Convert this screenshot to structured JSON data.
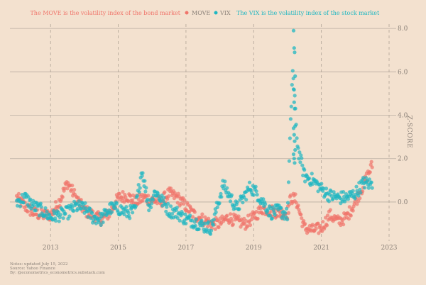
{
  "chart_data": {
    "type": "scatter",
    "ylabel": "Z-SCORE",
    "x_ticks": [
      "2013",
      "2015",
      "2017",
      "2019",
      "2021",
      "2023"
    ],
    "y_ticks": [
      "0.0",
      "2.0",
      "4.0",
      "6.0",
      "8.0"
    ],
    "xlim": [
      2011.8,
      2023.0
    ],
    "ylim": [
      -1.8,
      8.2
    ],
    "grid": {
      "horizontal_solid": true,
      "vertical_dashed": true
    },
    "legend": {
      "placement": "top-center",
      "left_text": "The MOVE is the volatility index of the bond market",
      "right_text": "The VIX is the volatility index of the stock market"
    },
    "series": [
      {
        "name": "MOVE",
        "color": "#f0756b",
        "points": [
          [
            2012.0,
            0.2
          ],
          [
            2012.25,
            -0.2
          ],
          [
            2012.5,
            -0.5
          ],
          [
            2012.75,
            -0.6
          ],
          [
            2013.0,
            -0.6
          ],
          [
            2013.25,
            0.0
          ],
          [
            2013.5,
            0.9
          ],
          [
            2013.75,
            0.2
          ],
          [
            2014.0,
            -0.4
          ],
          [
            2014.25,
            -0.6
          ],
          [
            2014.5,
            -0.8
          ],
          [
            2014.75,
            -0.5
          ],
          [
            2015.0,
            0.2
          ],
          [
            2015.25,
            0.3
          ],
          [
            2015.5,
            0.0
          ],
          [
            2015.75,
            0.2
          ],
          [
            2016.0,
            0.1
          ],
          [
            2016.25,
            0.0
          ],
          [
            2016.5,
            0.4
          ],
          [
            2016.75,
            0.2
          ],
          [
            2017.0,
            -0.2
          ],
          [
            2017.25,
            -0.6
          ],
          [
            2017.5,
            -0.8
          ],
          [
            2017.75,
            -1.0
          ],
          [
            2018.0,
            -1.0
          ],
          [
            2018.25,
            -0.7
          ],
          [
            2018.5,
            -0.9
          ],
          [
            2018.75,
            -1.0
          ],
          [
            2019.0,
            -0.7
          ],
          [
            2019.25,
            -0.3
          ],
          [
            2019.5,
            -0.4
          ],
          [
            2019.75,
            -0.5
          ],
          [
            2020.0,
            -0.5
          ],
          [
            2020.1,
            0.2
          ],
          [
            2020.25,
            0.1
          ],
          [
            2020.5,
            -1.2
          ],
          [
            2020.75,
            -1.3
          ],
          [
            2021.0,
            -1.2
          ],
          [
            2021.25,
            -0.6
          ],
          [
            2021.5,
            -0.9
          ],
          [
            2021.75,
            -0.7
          ],
          [
            2022.0,
            0.0
          ],
          [
            2022.25,
            0.8
          ],
          [
            2022.5,
            1.7
          ]
        ]
      },
      {
        "name": "VIX",
        "color": "#1fb7c2",
        "points": [
          [
            2012.0,
            0.0
          ],
          [
            2012.25,
            0.2
          ],
          [
            2012.5,
            -0.2
          ],
          [
            2012.75,
            -0.4
          ],
          [
            2013.0,
            -0.7
          ],
          [
            2013.25,
            -0.6
          ],
          [
            2013.5,
            -0.5
          ],
          [
            2013.75,
            -0.2
          ],
          [
            2014.0,
            -0.3
          ],
          [
            2014.25,
            -0.7
          ],
          [
            2014.5,
            -0.8
          ],
          [
            2014.75,
            -0.3
          ],
          [
            2015.0,
            -0.3
          ],
          [
            2015.25,
            -0.5
          ],
          [
            2015.5,
            -0.4
          ],
          [
            2015.7,
            1.5
          ],
          [
            2015.9,
            -0.2
          ],
          [
            2016.1,
            0.5
          ],
          [
            2016.5,
            -0.4
          ],
          [
            2016.75,
            -0.5
          ],
          [
            2017.0,
            -0.8
          ],
          [
            2017.25,
            -0.9
          ],
          [
            2017.5,
            -1.1
          ],
          [
            2017.75,
            -1.2
          ],
          [
            2018.1,
            0.8
          ],
          [
            2018.5,
            -0.3
          ],
          [
            2018.9,
            0.7
          ],
          [
            2019.1,
            0.4
          ],
          [
            2019.5,
            -0.5
          ],
          [
            2019.75,
            -0.4
          ],
          [
            2020.0,
            -0.6
          ],
          [
            2020.15,
            6.2
          ],
          [
            2020.3,
            2.5
          ],
          [
            2020.5,
            1.2
          ],
          [
            2020.75,
            1.0
          ],
          [
            2021.0,
            0.6
          ],
          [
            2021.25,
            0.3
          ],
          [
            2021.5,
            0.2
          ],
          [
            2021.75,
            0.2
          ],
          [
            2022.0,
            0.4
          ],
          [
            2022.25,
            0.9
          ],
          [
            2022.5,
            0.8
          ]
        ]
      }
    ],
    "notes": [
      "Notes: updated July 15, 2022",
      "Source: Yahoo Finance",
      "By: @econometrics_econometrics.substack.com"
    ]
  }
}
